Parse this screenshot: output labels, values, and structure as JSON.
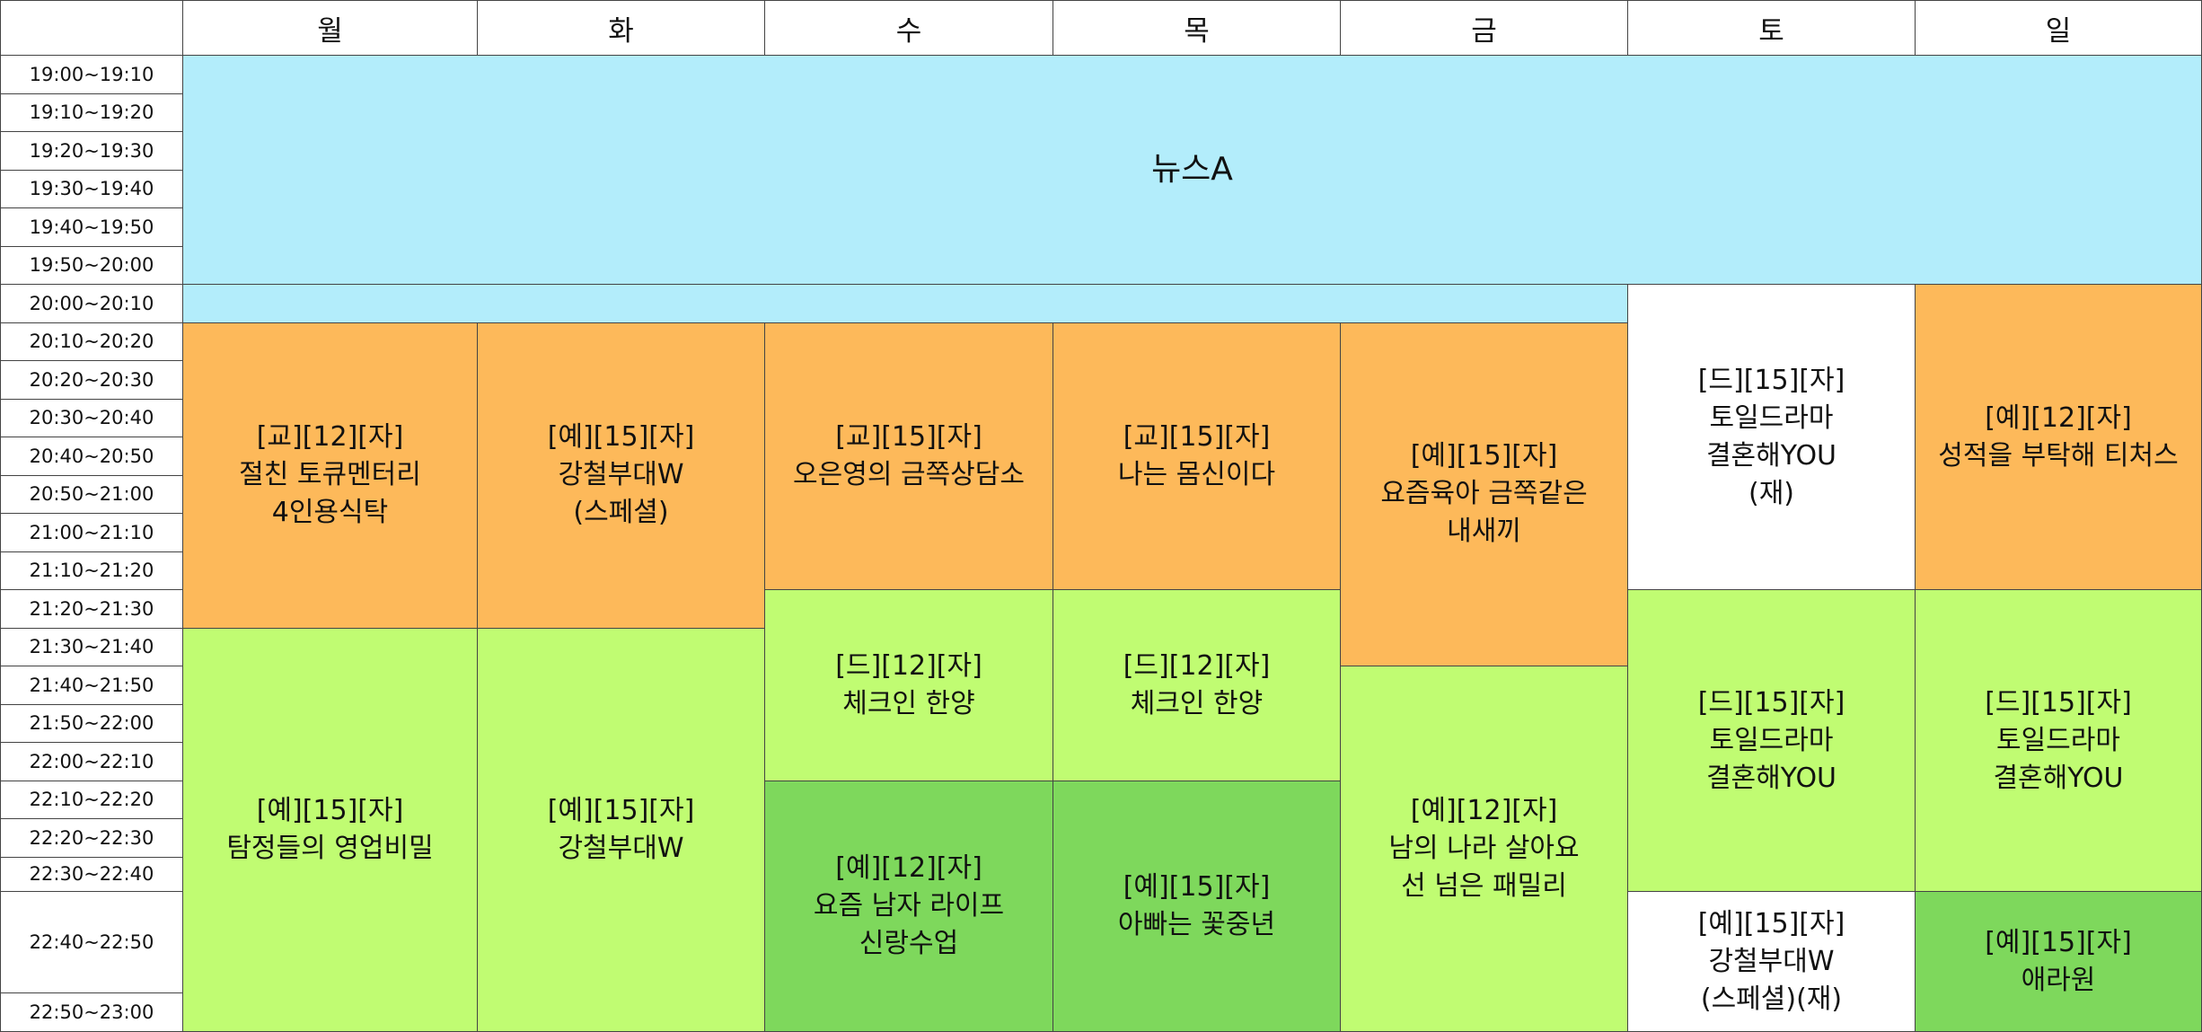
{
  "colors": {
    "news": "#b3edfb",
    "orange": "#fdb95a",
    "light-green": "#c0fc72",
    "green": "#7ed85c",
    "white": "#ffffff"
  },
  "days": [
    "월",
    "화",
    "수",
    "목",
    "금",
    "토",
    "일"
  ],
  "times": [
    "19:00~19:10",
    "19:10~19:20",
    "19:20~19:30",
    "19:30~19:40",
    "19:40~19:50",
    "19:50~20:00",
    "20:00~20:10",
    "20:10~20:20",
    "20:20~20:30",
    "20:30~20:40",
    "20:40~20:50",
    "20:50~21:00",
    "21:00~21:10",
    "21:10~21:20",
    "21:20~21:30",
    "21:30~21:40",
    "21:40~21:50",
    "21:50~22:00",
    "22:00~22:10",
    "22:10~22:20",
    "22:20~22:30",
    "22:30~22:40",
    "22:40~22:50",
    "22:50~23:00"
  ],
  "programs": [
    {
      "text": "뉴스A",
      "color": "news",
      "big": true
    },
    {
      "text": "",
      "color": "news"
    },
    {
      "text": "[교][12][자]\n절친 토큐멘터리\n4인용식탁",
      "color": "orange"
    },
    {
      "text": "[예][15][자]\n강철부대W\n(스페셜)",
      "color": "orange"
    },
    {
      "text": "[교][15][자]\n오은영의 금쪽상담소",
      "color": "orange"
    },
    {
      "text": "[교][15][자]\n나는 몸신이다",
      "color": "orange"
    },
    {
      "text": "[예][15][자]\n요즘육아 금쪽같은\n내새끼",
      "color": "orange"
    },
    {
      "text": "[드][15][자]\n토일드라마\n결혼해YOU\n(재)",
      "color": "white"
    },
    {
      "text": "[예][12][자]\n성적을 부탁해 티처스",
      "color": "orange"
    },
    {
      "text": "[예][15][자]\n탐정들의 영업비밀",
      "color": "light-green"
    },
    {
      "text": "[예][15][자]\n강철부대W",
      "color": "light-green"
    },
    {
      "text": "[드][12][자]\n체크인 한양",
      "color": "light-green"
    },
    {
      "text": "[드][12][자]\n체크인 한양",
      "color": "light-green"
    },
    {
      "text": "[예][12][자]\n남의 나라 살아요\n선 넘은 패밀리",
      "color": "light-green"
    },
    {
      "text": "[드][15][자]\n토일드라마\n결혼해YOU",
      "color": "light-green"
    },
    {
      "text": "[드][15][자]\n토일드라마\n결혼해YOU",
      "color": "light-green"
    },
    {
      "text": "[예][12][자]\n요즘 남자 라이프\n신랑수업",
      "color": "green"
    },
    {
      "text": "[예][15][자]\n아빠는 꽃중년",
      "color": "green"
    },
    {
      "text": "[예][15][자]\n강철부대W\n(스페셜)(재)",
      "color": "white"
    },
    {
      "text": "[예][15][자]\n애라원",
      "color": "green"
    }
  ]
}
